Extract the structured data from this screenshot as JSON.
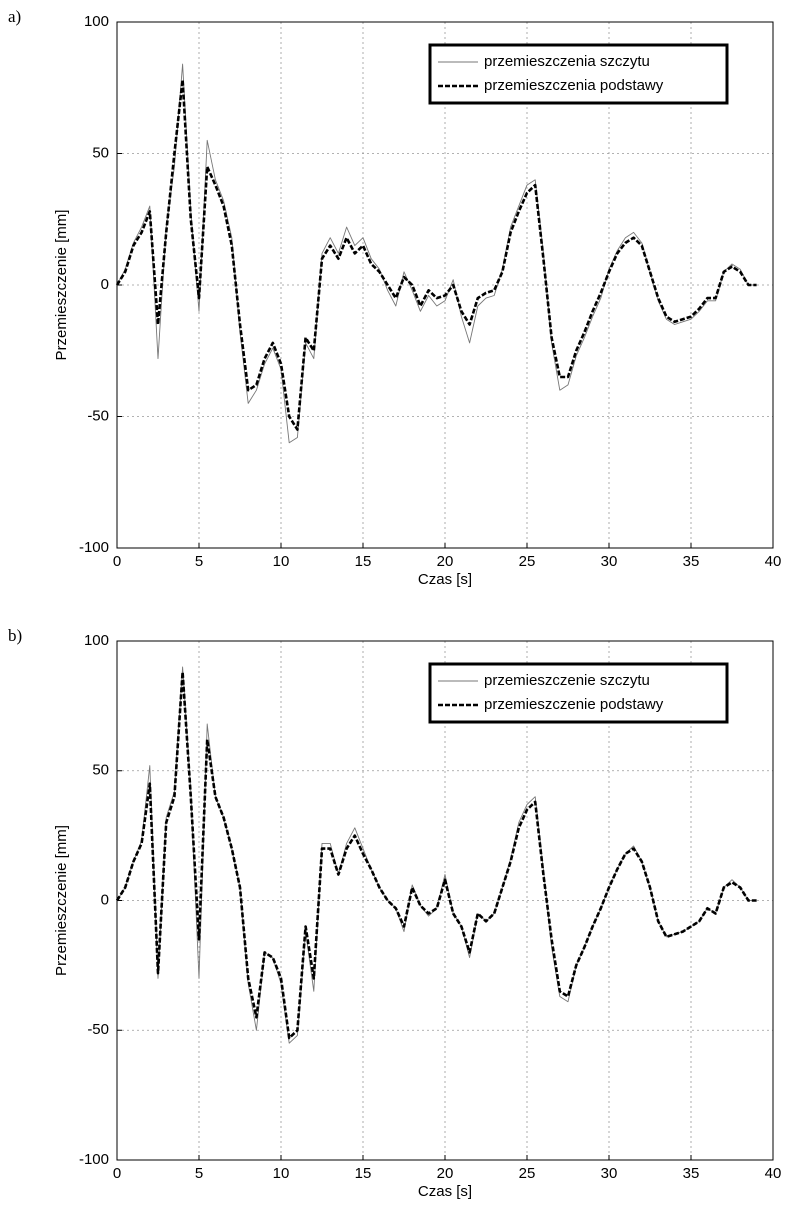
{
  "chart_data": [
    {
      "type": "line",
      "panel_label": "a)",
      "xlabel": "Czas [s]",
      "ylabel": "Przemieszczenie [mm]",
      "xlim": [
        0,
        40
      ],
      "ylim": [
        -100,
        100
      ],
      "xticks": [
        0,
        5,
        10,
        15,
        20,
        25,
        30,
        35,
        40
      ],
      "yticks": [
        -100,
        -50,
        0,
        50,
        100
      ],
      "grid": true,
      "legend": "upper right",
      "x": [
        0,
        0.5,
        1,
        1.5,
        2,
        2.5,
        3,
        3.5,
        4,
        4.5,
        5,
        5.5,
        6,
        6.5,
        7,
        7.5,
        8,
        8.5,
        9,
        9.5,
        10,
        10.5,
        11,
        11.5,
        12,
        12.5,
        13,
        13.5,
        14,
        14.5,
        15,
        15.5,
        16,
        16.5,
        17,
        17.5,
        18,
        18.5,
        19,
        19.5,
        20,
        20.5,
        21,
        21.5,
        22,
        22.5,
        23,
        23.5,
        24,
        24.5,
        25,
        25.5,
        26,
        26.5,
        27,
        27.5,
        28,
        28.5,
        29,
        29.5,
        30,
        30.5,
        31,
        31.5,
        32,
        32.5,
        33,
        33.5,
        34,
        34.5,
        35,
        35.5,
        36,
        36.5,
        37,
        37.5,
        38,
        38.5,
        39
      ],
      "series": [
        {
          "name": "przemieszczenia szczytu",
          "color": "#777777",
          "values": [
            0,
            6,
            16,
            22,
            30,
            -28,
            22,
            45,
            84,
            28,
            -10,
            55,
            40,
            32,
            18,
            -18,
            -45,
            -40,
            -30,
            -24,
            -32,
            -60,
            -58,
            -22,
            -28,
            12,
            18,
            12,
            22,
            15,
            18,
            10,
            6,
            -2,
            -8,
            5,
            -2,
            -10,
            -4,
            -8,
            -6,
            2,
            -12,
            -22,
            -8,
            -5,
            -4,
            6,
            22,
            30,
            38,
            40,
            12,
            -22,
            -40,
            -38,
            -27,
            -20,
            -12,
            -5,
            6,
            13,
            18,
            20,
            16,
            5,
            -6,
            -13,
            -15,
            -14,
            -13,
            -10,
            -6,
            -6,
            5,
            8,
            6,
            0,
            0
          ]
        },
        {
          "name": "przemieszczenia podstawy",
          "color": "#000000",
          "values": [
            0,
            5,
            15,
            20,
            28,
            -15,
            20,
            50,
            78,
            25,
            -5,
            45,
            38,
            30,
            15,
            -15,
            -40,
            -38,
            -28,
            -22,
            -30,
            -50,
            -55,
            -20,
            -25,
            10,
            15,
            10,
            18,
            12,
            15,
            8,
            5,
            0,
            -5,
            3,
            0,
            -8,
            -2,
            -5,
            -4,
            0,
            -10,
            -15,
            -5,
            -3,
            -2,
            5,
            20,
            28,
            35,
            38,
            10,
            -20,
            -35,
            -35,
            -25,
            -18,
            -10,
            -3,
            5,
            12,
            16,
            18,
            15,
            5,
            -5,
            -12,
            -14,
            -13,
            -12,
            -9,
            -5,
            -5,
            5,
            7,
            5,
            0,
            0
          ]
        }
      ]
    },
    {
      "type": "line",
      "panel_label": "b)",
      "xlabel": "Czas [s]",
      "ylabel": "Przemieszczenie [mm]",
      "xlim": [
        0,
        40
      ],
      "ylim": [
        -100,
        100
      ],
      "xticks": [
        0,
        5,
        10,
        15,
        20,
        25,
        30,
        35,
        40
      ],
      "yticks": [
        -100,
        -50,
        0,
        50,
        100
      ],
      "grid": true,
      "legend": "upper right",
      "x": [
        0,
        0.5,
        1,
        1.5,
        2,
        2.5,
        3,
        3.5,
        4,
        4.5,
        5,
        5.5,
        6,
        6.5,
        7,
        7.5,
        8,
        8.5,
        9,
        9.5,
        10,
        10.5,
        11,
        11.5,
        12,
        12.5,
        13,
        13.5,
        14,
        14.5,
        15,
        15.5,
        16,
        16.5,
        17,
        17.5,
        18,
        18.5,
        19,
        19.5,
        20,
        20.5,
        21,
        21.5,
        22,
        22.5,
        23,
        23.5,
        24,
        24.5,
        25,
        25.5,
        26,
        26.5,
        27,
        27.5,
        28,
        28.5,
        29,
        29.5,
        30,
        30.5,
        31,
        31.5,
        32,
        32.5,
        33,
        33.5,
        34,
        34.5,
        35,
        35.5,
        36,
        36.5,
        37,
        37.5,
        38,
        38.5,
        39
      ],
      "series": [
        {
          "name": "przemieszczenie szczytu",
          "color": "#777777",
          "values": [
            0,
            5,
            15,
            23,
            52,
            -30,
            32,
            42,
            90,
            42,
            -30,
            68,
            40,
            32,
            20,
            5,
            -32,
            -50,
            -20,
            -22,
            -32,
            -55,
            -52,
            -12,
            -35,
            22,
            22,
            10,
            22,
            28,
            20,
            12,
            5,
            0,
            -3,
            -12,
            6,
            -2,
            -6,
            -3,
            10,
            -5,
            -10,
            -22,
            -5,
            -8,
            -5,
            5,
            16,
            30,
            37,
            40,
            12,
            -18,
            -37,
            -39,
            -25,
            -18,
            -10,
            -3,
            5,
            12,
            18,
            21,
            15,
            5,
            -8,
            -14,
            -13,
            -12,
            -10,
            -8,
            -3,
            -5,
            5,
            8,
            5,
            0,
            0
          ]
        },
        {
          "name": "przemieszczenie podstawy",
          "color": "#000000",
          "values": [
            0,
            5,
            15,
            22,
            45,
            -28,
            30,
            40,
            88,
            40,
            -15,
            62,
            40,
            32,
            20,
            5,
            -30,
            -45,
            -20,
            -22,
            -30,
            -53,
            -50,
            -10,
            -30,
            20,
            20,
            10,
            20,
            25,
            18,
            12,
            5,
            0,
            -3,
            -10,
            5,
            -2,
            -5,
            -3,
            8,
            -5,
            -10,
            -20,
            -5,
            -8,
            -5,
            5,
            15,
            28,
            35,
            38,
            10,
            -15,
            -35,
            -37,
            -25,
            -18,
            -10,
            -3,
            5,
            12,
            18,
            20,
            15,
            5,
            -8,
            -14,
            -13,
            -12,
            -10,
            -8,
            -3,
            -5,
            5,
            7,
            5,
            0,
            0
          ]
        }
      ]
    }
  ]
}
